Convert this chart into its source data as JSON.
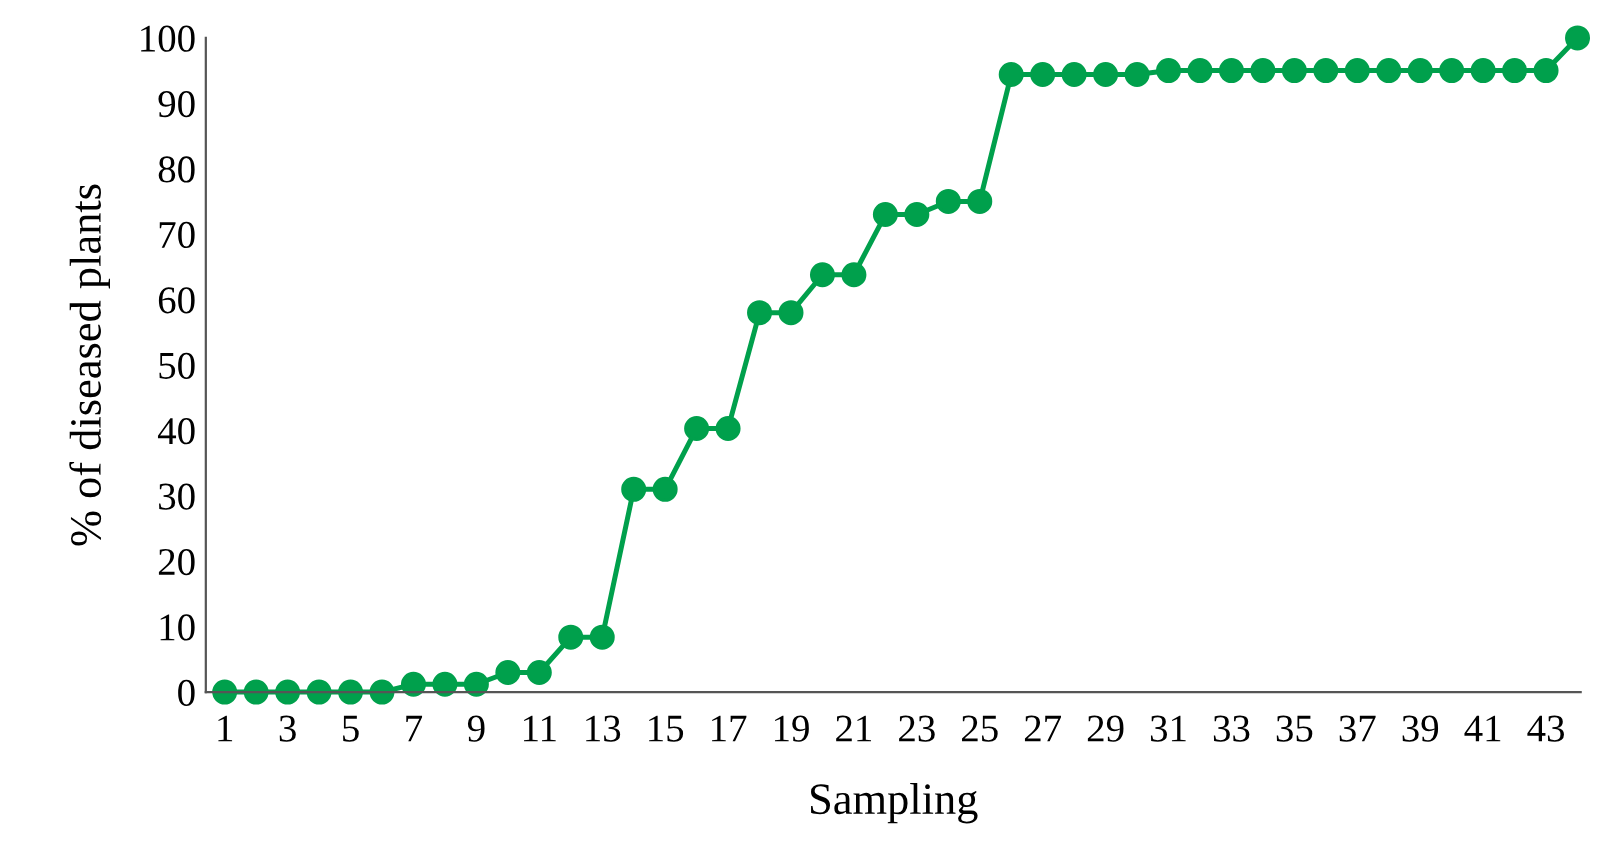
{
  "chart_data": {
    "type": "line",
    "xlabel": "Sampling",
    "ylabel": "% of diseased plants",
    "categories": [
      "1",
      null,
      "3",
      null,
      "5",
      null,
      "7",
      null,
      "9",
      null,
      "11",
      null,
      "13",
      null,
      "15",
      null,
      "17",
      null,
      "19",
      null,
      "21",
      null,
      "23",
      null,
      "25",
      null,
      "27",
      null,
      "29",
      null,
      "31",
      null,
      "33",
      null,
      "35",
      null,
      "37",
      null,
      "39",
      null,
      "41",
      null,
      "43",
      null
    ],
    "series": [
      {
        "color": "#00a04c",
        "values": [
          0,
          0,
          0,
          0,
          0,
          0,
          1.2,
          1.2,
          1.2,
          3,
          3,
          8.4,
          8.4,
          31,
          31,
          40.3,
          40.3,
          58,
          58,
          63.8,
          63.8,
          73,
          73,
          75,
          75,
          94.4,
          94.4,
          94.4,
          94.4,
          94.4,
          95,
          95,
          95,
          95,
          95,
          95,
          95,
          95,
          95,
          95,
          95,
          95,
          95,
          100
        ]
      }
    ],
    "ylim": [
      0,
      100
    ],
    "yticks": [
      0,
      10,
      20,
      30,
      40,
      50,
      60,
      70,
      80,
      90,
      100
    ],
    "grid": false,
    "legend": false,
    "marker": "circle",
    "line_style": "solid"
  }
}
